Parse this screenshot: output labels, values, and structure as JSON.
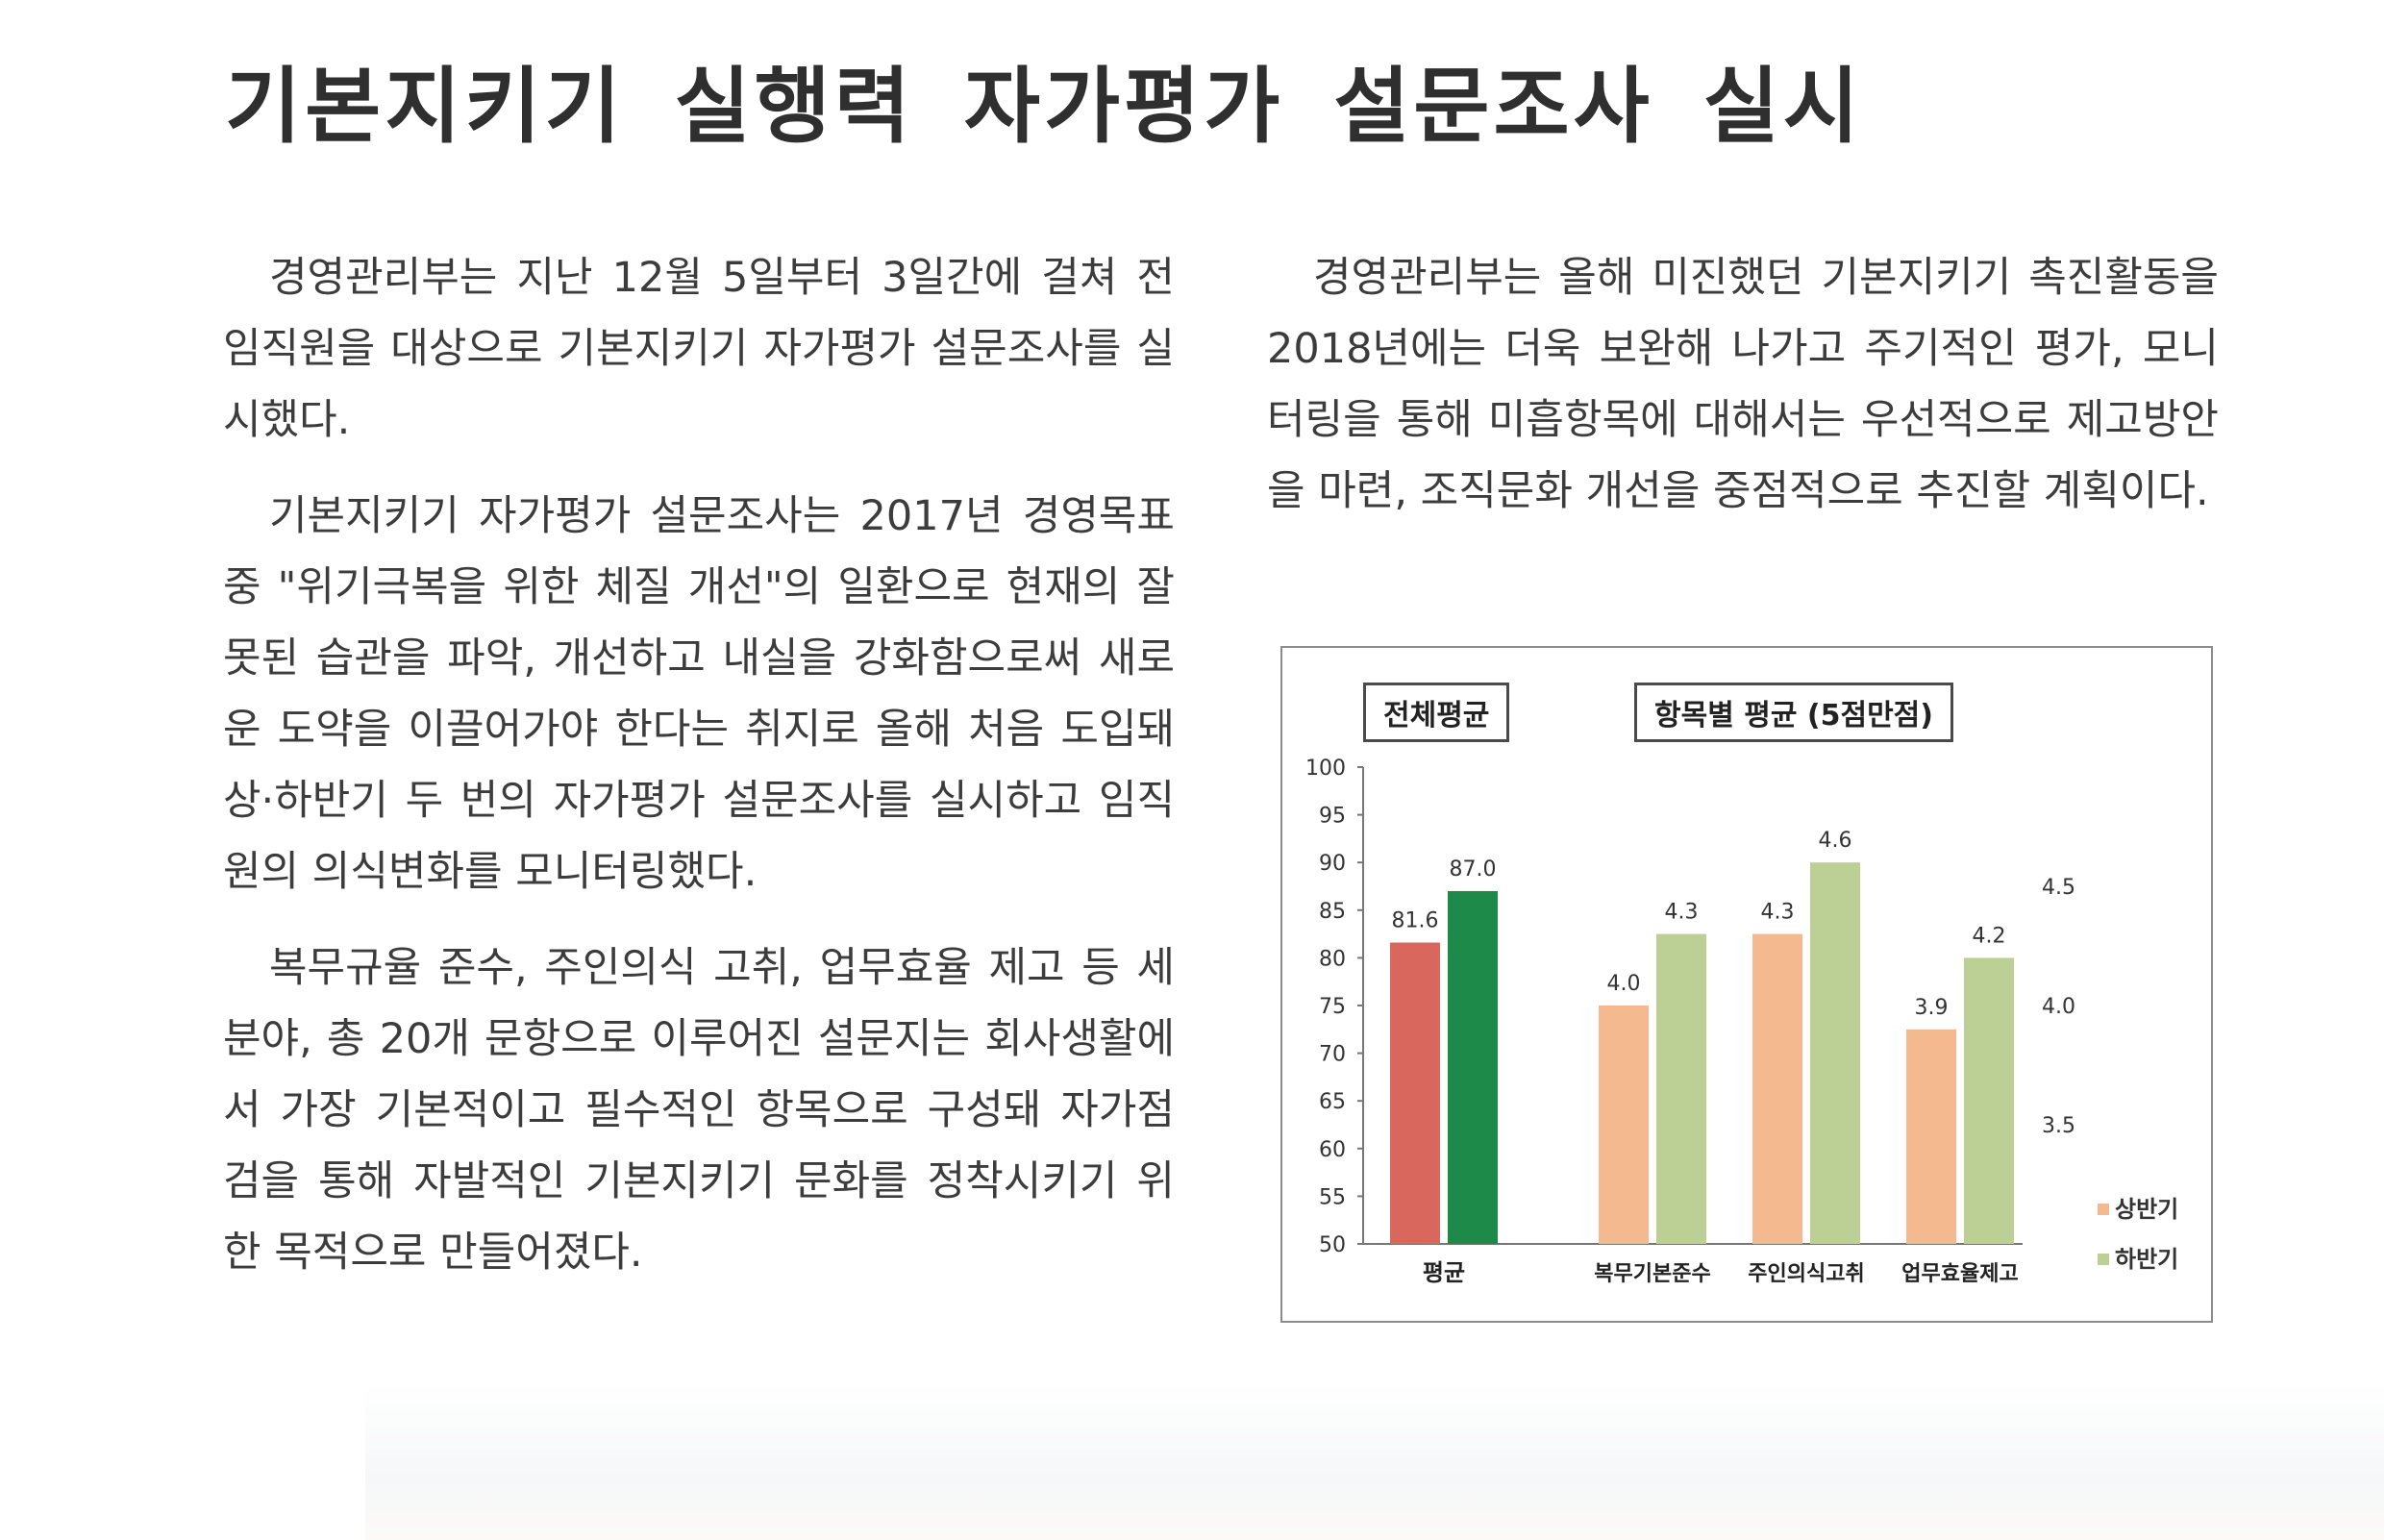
{
  "title": "기본지키기 실행력 자가평가 설문조사 실시",
  "left_column": [
    "경영관리부는 지난 12월 5일부터 3일간에 걸쳐 전 임직원을 대상으로 기본지키기 자가평가 설문조사를 실시했다.",
    "기본지키기 자가평가 설문조사는 2017년 경영목표 중 \"위기극복을 위한 체질 개선\"의 일환으로 현재의 잘못된 습관을 파악, 개선하고 내실을 강화함으로써 새로운 도약을 이끌어가야 한다는 취지로 올해 처음 도입돼 상·하반기 두 번의 자가평가 설문조사를 실시하고 임직원의 의식변화를 모니터링했다.",
    "복무규율 준수, 주인의식 고취, 업무효율 제고 등 세 분야, 총 20개 문항으로 이루어진 설문지는 회사생활에서 가장 기본적이고 필수적인 항목으로 구성돼 자가점검을 통해 자발적인 기본지키기 문화를 정착시키기 위한 목적으로 만들어졌다."
  ],
  "right_column": [
    "경영관리부는 올해 미진했던 기본지키기 촉진활동을 2018년에는 더욱 보완해 나가고 주기적인 평가, 모니터링을 통해 미흡항목에 대해서는 우선적으로 제고방안을 마련, 조직문화 개선을 중점적으로 추진할 계획이다."
  ],
  "chart_data": {
    "type": "bar",
    "panels": [
      {
        "label": "전체평균",
        "categories": [
          "평균"
        ],
        "series": [
          {
            "name": "상반기",
            "values": [
              81.6
            ],
            "labels": [
              "81.6"
            ]
          },
          {
            "name": "하반기",
            "values": [
              87.0
            ],
            "labels": [
              "87.0"
            ]
          }
        ],
        "axis": "left",
        "ylim": [
          50,
          100
        ],
        "yticks": [
          100,
          95,
          90,
          85,
          80,
          75,
          70,
          65,
          60,
          55,
          50
        ]
      },
      {
        "label": "항목별 평균 (5점만점)",
        "categories": [
          "복무기본준수",
          "주인의식고취",
          "업무효율제고"
        ],
        "series": [
          {
            "name": "상반기",
            "values": [
              4.0,
              4.3,
              3.9
            ],
            "labels": [
              "4.0",
              "4.3",
              "3.9"
            ]
          },
          {
            "name": "하반기",
            "values": [
              4.3,
              4.6,
              4.2
            ],
            "labels": [
              "4.3",
              "4.6",
              "4.2"
            ]
          }
        ],
        "axis": "right",
        "ylim": [
          3.0,
          5.0
        ],
        "yticks": [
          4.5,
          4.0,
          3.5
        ]
      }
    ],
    "legend": [
      "상반기",
      "하반기"
    ],
    "legend_position": "right",
    "colors": {
      "avg_first": "#d9675e",
      "avg_second": "#1d8a4a",
      "item_first": "#f5b98f",
      "item_second": "#bccf94"
    }
  }
}
